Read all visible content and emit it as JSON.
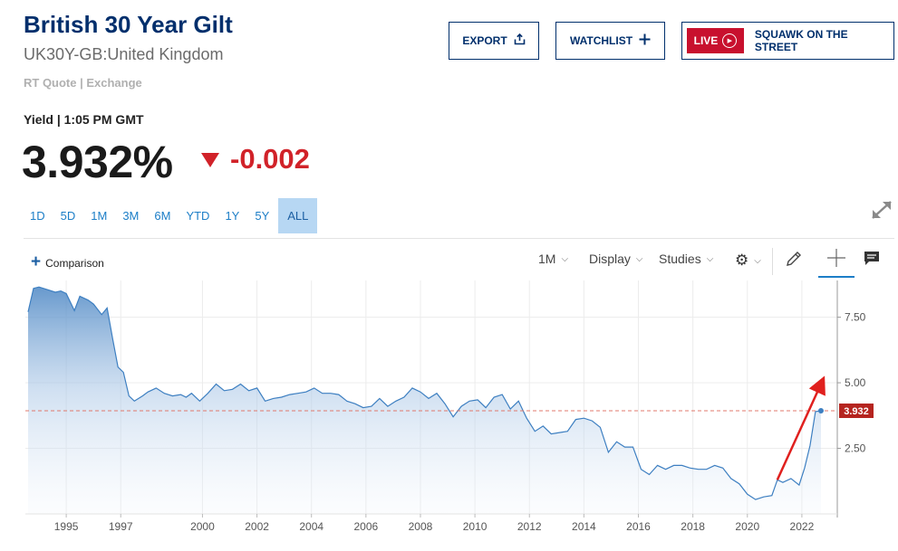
{
  "header": {
    "title": "British 30 Year Gilt",
    "subtitle": "UK30Y-GB:United Kingdom",
    "rt_quote": "RT Quote | Exchange",
    "yield_time": "Yield | 1:05 PM GMT",
    "price": "3.932%",
    "change": "-0.002"
  },
  "buttons": {
    "export": "EXPORT",
    "watchlist": "WATCHLIST",
    "live": "LIVE",
    "squawk": "SQUAWK ON THE STREET"
  },
  "ranges": [
    "1D",
    "5D",
    "1M",
    "3M",
    "6M",
    "YTD",
    "1Y",
    "5Y",
    "ALL"
  ],
  "active_range": "ALL",
  "toolbar": {
    "comparison": "Comparison",
    "interval": "1M",
    "display": "Display",
    "studies": "Studies"
  },
  "colors": {
    "brand": "#002f6c",
    "down": "#d12229",
    "line": "#3d7fc1",
    "live": "#c8102e"
  },
  "chart_data": {
    "type": "area",
    "x": [
      1993.6,
      1993.8,
      1994.0,
      1994.3,
      1994.6,
      1994.8,
      1995.0,
      1995.3,
      1995.5,
      1995.8,
      1996.0,
      1996.3,
      1996.5,
      1996.7,
      1996.9,
      1997.1,
      1997.3,
      1997.5,
      1997.8,
      1998.0,
      1998.3,
      1998.6,
      1998.9,
      1999.2,
      1999.4,
      1999.6,
      1999.9,
      2000.2,
      2000.5,
      2000.8,
      2001.1,
      2001.4,
      2001.7,
      2002.0,
      2002.3,
      2002.6,
      2002.9,
      2003.2,
      2003.5,
      2003.8,
      2004.1,
      2004.4,
      2004.7,
      2005.0,
      2005.3,
      2005.6,
      2005.9,
      2006.2,
      2006.5,
      2006.8,
      2007.1,
      2007.4,
      2007.7,
      2008.0,
      2008.3,
      2008.6,
      2008.9,
      2009.2,
      2009.5,
      2009.8,
      2010.1,
      2010.4,
      2010.7,
      2011.0,
      2011.3,
      2011.6,
      2011.9,
      2012.2,
      2012.5,
      2012.8,
      2013.1,
      2013.4,
      2013.7,
      2014.0,
      2014.3,
      2014.6,
      2014.9,
      2015.2,
      2015.5,
      2015.8,
      2016.1,
      2016.4,
      2016.7,
      2017.0,
      2017.3,
      2017.6,
      2017.9,
      2018.2,
      2018.5,
      2018.8,
      2019.1,
      2019.4,
      2019.7,
      2020.0,
      2020.3,
      2020.6,
      2020.9,
      2021.1,
      2021.3,
      2021.6,
      2021.9,
      2022.1,
      2022.3,
      2022.5,
      2022.7
    ],
    "values": [
      7.7,
      8.6,
      8.65,
      8.55,
      8.45,
      8.5,
      8.4,
      7.75,
      8.3,
      8.15,
      8.0,
      7.6,
      7.85,
      6.7,
      5.6,
      5.4,
      4.5,
      4.3,
      4.5,
      4.65,
      4.8,
      4.6,
      4.5,
      4.55,
      4.45,
      4.6,
      4.3,
      4.6,
      4.95,
      4.7,
      4.75,
      4.95,
      4.7,
      4.8,
      4.3,
      4.4,
      4.45,
      4.55,
      4.6,
      4.65,
      4.8,
      4.6,
      4.6,
      4.55,
      4.3,
      4.2,
      4.05,
      4.1,
      4.4,
      4.1,
      4.3,
      4.45,
      4.8,
      4.65,
      4.4,
      4.6,
      4.2,
      3.7,
      4.1,
      4.3,
      4.35,
      4.05,
      4.45,
      4.55,
      4.0,
      4.3,
      3.65,
      3.15,
      3.35,
      3.05,
      3.1,
      3.15,
      3.6,
      3.65,
      3.55,
      3.3,
      2.35,
      2.75,
      2.55,
      2.55,
      1.7,
      1.5,
      1.85,
      1.7,
      1.85,
      1.85,
      1.75,
      1.7,
      1.7,
      1.85,
      1.75,
      1.35,
      1.15,
      0.75,
      0.55,
      0.65,
      0.7,
      1.3,
      1.2,
      1.35,
      1.1,
      1.75,
      2.6,
      3.9,
      3.932
    ],
    "xticks": [
      "1995",
      "1997",
      "2000",
      "2002",
      "2004",
      "2006",
      "2008",
      "2010",
      "2012",
      "2014",
      "2016",
      "2018",
      "2020",
      "2022"
    ],
    "xtick_values": [
      1995,
      1997,
      2000,
      2002,
      2004,
      2006,
      2008,
      2010,
      2012,
      2014,
      2016,
      2018,
      2020,
      2022
    ],
    "yticks": [
      "2.50",
      "5.00",
      "7.50"
    ],
    "ytick_values": [
      2.5,
      5.0,
      7.5
    ],
    "xlim": [
      1993.5,
      2023.3
    ],
    "ylim": [
      0.0,
      8.9
    ],
    "last_value": 3.932,
    "last_label": "3.932",
    "annotation": "red arrow pointing up toward the latest value",
    "annotation_from": [
      2021.1,
      1.3
    ],
    "annotation_to": [
      2022.7,
      4.95
    ]
  }
}
